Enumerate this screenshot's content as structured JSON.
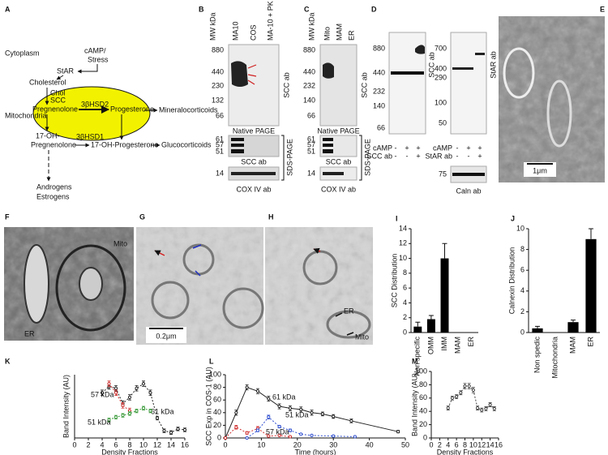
{
  "figure": {
    "A": {
      "label": "A",
      "cytoplasm": "Cytoplasm",
      "camp": "cAMP/",
      "stress": "Stress",
      "star": "StAR",
      "cholesterol": "Cholesterol",
      "chol": "Chol",
      "scc": "SCC",
      "mitochondria": "Mitochondria",
      "pregnenolone": "Pregnenolone",
      "hsd2": "3βHSD2",
      "progesterone": "Progesterone",
      "mineralocorticoids": "Mineralocorticoids",
      "oh17": "17-OH-",
      "pregnenolone17": "Pregnenolone",
      "hsd1": "3βHSD1",
      "ohprogesterone": "17-OH-Progesterone",
      "glucocorticoids": "Glucocorticoids",
      "androgens": "Androgens",
      "estrogens": "Estrogens"
    },
    "B": {
      "label": "B",
      "lanes": [
        "MW kDa",
        "MA10",
        "COS",
        "MA-10 + PK"
      ],
      "markers": [
        "880",
        "440",
        "230",
        "132",
        "66"
      ],
      "native_ab": "SCC ab",
      "native": "Native PAGE",
      "sds_markers": [
        "61",
        "57",
        "51"
      ],
      "sds_ab": "SCC ab",
      "sds": "SDS-PAGE",
      "cox_marker": "14",
      "cox_ab": "COX IV ab"
    },
    "C": {
      "label": "C",
      "lanes": [
        "MW kDa",
        "Mito",
        "MAM",
        "ER"
      ],
      "markers": [
        "880",
        "440",
        "232",
        "140",
        "66"
      ],
      "native_ab": "SCC ab",
      "native": "Native PAGE",
      "sds_markers": [
        "61",
        "57",
        "51"
      ],
      "sds_ab": "SCC ab",
      "sds": "SDS-PAGE",
      "cox_marker": "14",
      "cox_ab": "COX IV ab"
    },
    "D": {
      "label": "D",
      "left": {
        "markers": [
          "880",
          "440",
          "232",
          "140",
          "66"
        ],
        "ab": "SCC ab",
        "rows": [
          {
            "name": "cAMP",
            "signs": [
              "-",
              "+",
              "+"
            ]
          },
          {
            "name": "SCC ab",
            "signs": [
              "-",
              "-",
              "+"
            ]
          }
        ]
      },
      "right": {
        "markers": [
          "700",
          "400",
          "290",
          "100",
          "50"
        ],
        "ab": "StAR ab",
        "rows": [
          {
            "name": "cAMP",
            "signs": [
              "-",
              "+",
              "+"
            ]
          },
          {
            "name": "StAR ab",
            "signs": [
              "-",
              "-",
              "+"
            ]
          }
        ],
        "caln_marker": "75",
        "caln_ab": "Caln ab"
      }
    },
    "E": {
      "label": "E",
      "scale": "1μm"
    },
    "F": {
      "label": "F",
      "mito": "Mito",
      "er": "ER"
    },
    "G": {
      "label": "G",
      "scale": "0.2μm"
    },
    "H": {
      "label": "H",
      "er": "ER",
      "mito": "Mito"
    }
  },
  "chart_data": [
    {
      "type": "bar",
      "panel": "I",
      "ylabel": "SCC Distribution",
      "categories": [
        "Non specific",
        "OMM",
        "IMM",
        "MAM",
        "ER"
      ],
      "values": [
        0.8,
        1.8,
        10,
        0,
        0
      ],
      "errors": [
        0.6,
        0.5,
        2,
        0,
        0
      ],
      "color": "#000000",
      "ylim": [
        0,
        14
      ],
      "yticks": [
        0,
        2,
        4,
        6,
        8,
        10,
        12,
        14
      ]
    },
    {
      "type": "bar",
      "panel": "J",
      "ylabel": "Calnexin Distribution",
      "categories": [
        "Non spedic",
        "Mitochondria",
        "MAM",
        "ER"
      ],
      "values": [
        0.4,
        0,
        1,
        9
      ],
      "errors": [
        0.2,
        0,
        0.2,
        1
      ],
      "color": "#000000",
      "ylim": [
        0,
        10
      ],
      "yticks": [
        0,
        2,
        4,
        6,
        8,
        10
      ]
    },
    {
      "type": "line",
      "panel": "K",
      "xlabel": "Density Fractions",
      "ylabel": "Band Intensity (AU)",
      "xlim": [
        0,
        16
      ],
      "xticks": [
        0,
        2,
        4,
        6,
        8,
        10,
        12,
        14,
        16
      ],
      "ylim": [
        0,
        70
      ],
      "series": [
        {
          "name": "61 kDa",
          "color": "#222222",
          "line_style": "dotted",
          "x": [
            4,
            5,
            6,
            7,
            8,
            9,
            10,
            11,
            12,
            13,
            14,
            15,
            16
          ],
          "values": [
            50,
            57,
            55,
            38,
            45,
            55,
            60,
            50,
            22,
            8,
            6,
            10,
            9
          ],
          "errors": [
            3,
            3,
            3,
            3,
            3,
            3,
            3,
            3,
            2,
            2,
            2,
            2,
            2
          ]
        },
        {
          "name": "57 kDa",
          "color": "#d03030",
          "line_style": "dotted",
          "x": [
            5,
            6,
            7,
            8
          ],
          "values": [
            60,
            50,
            36,
            30
          ],
          "errors": [
            3,
            3,
            3,
            3
          ]
        },
        {
          "name": "51 kDa",
          "color": "#3a9a3a",
          "line_style": "dotted",
          "x": [
            5,
            6,
            7,
            8,
            9,
            10,
            11
          ],
          "values": [
            20,
            23,
            25,
            27,
            30,
            33,
            30
          ],
          "errors": [
            2,
            2,
            2,
            2,
            2,
            2,
            2
          ]
        }
      ]
    },
    {
      "type": "line",
      "panel": "L",
      "xlabel": "Time (hours)",
      "ylabel": "SCC Exp in COS-1 (AU)",
      "xlim": [
        0,
        50
      ],
      "xticks": [
        0,
        10,
        20,
        30,
        40,
        50
      ],
      "ylim": [
        0,
        100
      ],
      "yticks": [
        0,
        20,
        40,
        60,
        80,
        100
      ],
      "series": [
        {
          "name": "61 kDa",
          "color": "#222222",
          "line_style": "solid",
          "x": [
            0,
            3,
            6,
            9,
            12,
            15,
            18,
            21,
            24,
            27,
            30,
            35,
            48
          ],
          "values": [
            0,
            40,
            80,
            74,
            62,
            50,
            47,
            45,
            40,
            38,
            34,
            27,
            10
          ],
          "errors": [
            1,
            4,
            4,
            4,
            4,
            4,
            4,
            4,
            4,
            3,
            3,
            3,
            2
          ]
        },
        {
          "name": "57 kDa",
          "color": "#d03030",
          "line_style": "dotted",
          "x": [
            0,
            3,
            6,
            9,
            12,
            15,
            18
          ],
          "values": [
            0,
            17,
            8,
            15,
            3,
            4,
            2
          ],
          "errors": [
            1,
            3,
            2,
            3,
            1,
            1,
            1
          ]
        },
        {
          "name": "51 kDa",
          "color": "#3050d0",
          "line_style": "dotted",
          "x": [
            6,
            9,
            12,
            15,
            18,
            21,
            24,
            30,
            36
          ],
          "values": [
            0,
            12,
            33,
            18,
            12,
            6,
            4,
            3,
            2
          ],
          "errors": [
            1,
            2,
            3,
            2,
            2,
            1,
            1,
            1,
            1
          ]
        }
      ]
    },
    {
      "type": "line",
      "panel": "M",
      "xlabel": "Density Fractions",
      "ylabel": "Band Intensity (AU)",
      "xlim": [
        0,
        16
      ],
      "xticks": [
        0,
        2,
        4,
        6,
        8,
        10,
        12,
        14,
        16
      ],
      "ylim": [
        0,
        100
      ],
      "yticks": [
        0,
        20,
        40,
        60,
        80,
        100
      ],
      "series": [
        {
          "color": "#444444",
          "line_style": "dotted",
          "x": [
            4,
            5,
            6,
            7,
            8,
            9,
            10,
            11,
            12,
            13,
            14,
            15
          ],
          "values": [
            45,
            60,
            62,
            68,
            78,
            78,
            72,
            45,
            42,
            44,
            50,
            44
          ],
          "errors": [
            3,
            3,
            3,
            3,
            4,
            4,
            4,
            3,
            3,
            3,
            3,
            3
          ]
        }
      ]
    }
  ]
}
